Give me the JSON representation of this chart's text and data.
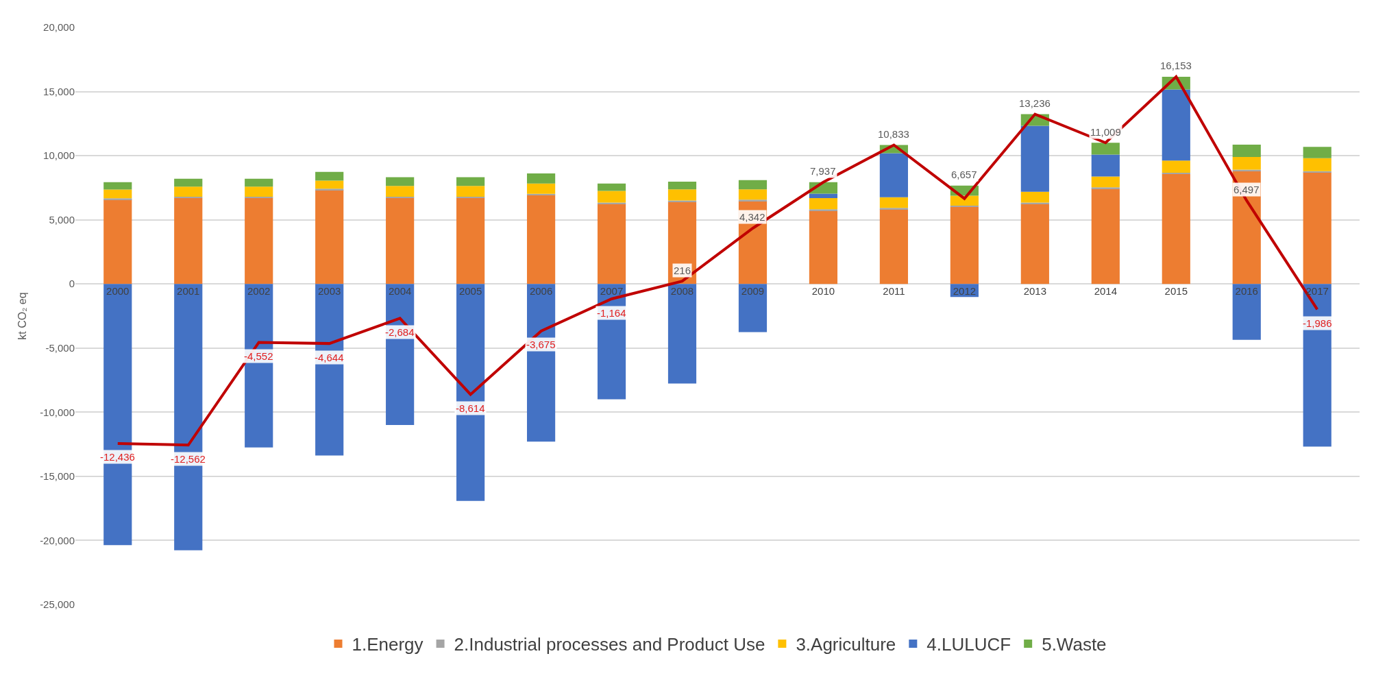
{
  "chart_data": {
    "type": "bar",
    "stacked": true,
    "ylabel": "kt CO₂ eq",
    "categories": [
      "2000",
      "2001",
      "2002",
      "2003",
      "2004",
      "2005",
      "2006",
      "2007",
      "2008",
      "2009",
      "2010",
      "2011",
      "2012",
      "2013",
      "2014",
      "2015",
      "2016",
      "2017"
    ],
    "series": [
      {
        "name": "1.Energy",
        "color": "#ed7d31",
        "values": [
          6580,
          6700,
          6700,
          7330,
          6700,
          6700,
          6930,
          6250,
          6400,
          6470,
          5730,
          5830,
          6000,
          6240,
          7430,
          8570,
          8810,
          8690
        ]
      },
      {
        "name": "2.Industrial processes and Product Use",
        "color": "#a5a5a5",
        "values": [
          100,
          100,
          100,
          100,
          100,
          100,
          100,
          100,
          100,
          100,
          100,
          100,
          100,
          100,
          100,
          100,
          100,
          100
        ]
      },
      {
        "name": "3.Agriculture",
        "color": "#ffc000",
        "values": [
          680,
          790,
          790,
          620,
          840,
          840,
          800,
          910,
          870,
          800,
          860,
          830,
          780,
          850,
          850,
          950,
          990,
          1020
        ]
      },
      {
        "name": "4.LULUCF",
        "color": "#4472c4",
        "values": [
          -20370,
          -20760,
          -12750,
          -13370,
          -11000,
          -16920,
          -12300,
          -8990,
          -7760,
          -3760,
          350,
          3430,
          -1020,
          5140,
          1710,
          5540,
          -4360,
          -12680
        ]
      },
      {
        "name": "5.Waste",
        "color": "#70ad47",
        "values": [
          570,
          610,
          610,
          680,
          680,
          680,
          790,
          570,
          610,
          730,
          900,
          640,
          790,
          910,
          920,
          990,
          960,
          880
        ]
      },
      {
        "type": "line",
        "color": "#c00000",
        "marker": "none",
        "line_style": "solid",
        "values": [
          -12436,
          -12562,
          -4552,
          -4644,
          -2684,
          -8614,
          -3675,
          -1164,
          216,
          4342,
          7937,
          10833,
          6657,
          13236,
          11009,
          16153,
          6497,
          -1986
        ],
        "value_labels": [
          "-12,436",
          "-12,562",
          "-4,552",
          "-4,644",
          "-2,684",
          "-8,614",
          "-3,675",
          "-1,164",
          "216",
          "4,342",
          "7,937",
          "10,833",
          "6,657",
          "13,236",
          "11,009",
          "16,153",
          "6,497",
          "-1,986"
        ]
      }
    ],
    "ylim": [
      -25000,
      20000
    ],
    "yticks": [
      {
        "value": -25000,
        "label": "-25,000"
      },
      {
        "value": -20000,
        "label": "-20,000"
      },
      {
        "value": -15000,
        "label": "-15,000"
      },
      {
        "value": -10000,
        "label": "-10,000"
      },
      {
        "value": -5000,
        "label": "-5,000"
      },
      0,
      {
        "value": 5000,
        "label": "5,000"
      },
      {
        "value": 10000,
        "label": "10,000"
      },
      {
        "value": 15000,
        "label": "15,000"
      },
      {
        "value": 20000,
        "label": "20,000"
      }
    ],
    "grid": "y",
    "legend": "bottom"
  }
}
